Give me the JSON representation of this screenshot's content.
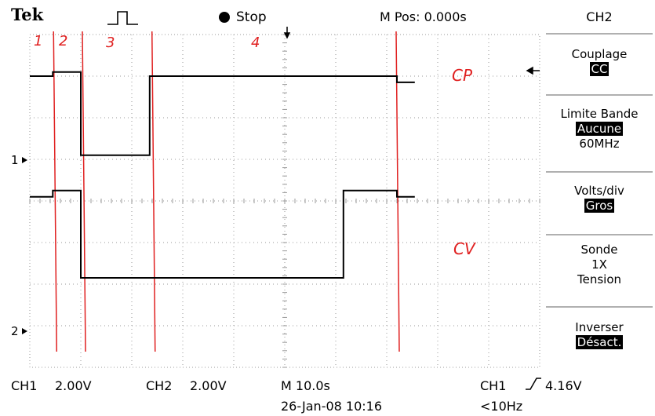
{
  "header": {
    "brand": "Tek",
    "status": "Stop",
    "horizontal_position": "M Pos: 0.000s"
  },
  "menu": {
    "title": "CH2",
    "items": [
      {
        "label": "Couplage",
        "values": [
          "CC"
        ],
        "highlighted": [
          true
        ]
      },
      {
        "label": "Limite Bande",
        "values": [
          "Aucune",
          "60MHz"
        ],
        "highlighted": [
          true,
          false
        ]
      },
      {
        "label": "Volts/div",
        "values": [
          "Gros"
        ],
        "highlighted": [
          true
        ]
      },
      {
        "label": "Sonde",
        "values": [
          "1X",
          "Tension"
        ],
        "highlighted": [
          false,
          false
        ]
      },
      {
        "label": "Inverser",
        "values": [
          "Désact."
        ],
        "highlighted": [
          true
        ]
      }
    ]
  },
  "footer": {
    "ch1_label": "CH1",
    "ch1_scale": "2.00V",
    "ch2_label": "CH2",
    "ch2_scale": "2.00V",
    "timebase": "M 10.0s",
    "date_time": "26-Jan-08 10:16",
    "trigger_source": "CH1",
    "trigger_level": "4.16V",
    "frequency": "<10Hz"
  },
  "markers": {
    "ch1": "1",
    "ch2": "2"
  },
  "annotations": {
    "phases": [
      "1",
      "2",
      "3",
      "4"
    ],
    "cp": "CP",
    "cv": "CV"
  },
  "colors": {
    "trace": "#000000",
    "annotation": "#e02020",
    "grid": "#9a9a9a"
  },
  "chart_data": {
    "type": "line",
    "x_unit": "div",
    "y_unit": "div",
    "xlim": [
      0,
      10
    ],
    "ylim": [
      -4,
      4
    ],
    "series": [
      {
        "name": "CP",
        "points": [
          [
            0,
            3.0
          ],
          [
            0.45,
            3.0
          ],
          [
            0.45,
            3.1
          ],
          [
            1.0,
            3.1
          ],
          [
            1.0,
            1.1
          ],
          [
            2.35,
            1.1
          ],
          [
            2.35,
            3.0
          ],
          [
            7.2,
            3.0
          ],
          [
            7.2,
            2.85
          ],
          [
            7.55,
            2.85
          ]
        ]
      },
      {
        "name": "CV",
        "points": [
          [
            0,
            0.1
          ],
          [
            0.45,
            0.1
          ],
          [
            0.45,
            0.25
          ],
          [
            1.0,
            0.25
          ],
          [
            1.0,
            -1.85
          ],
          [
            6.15,
            -1.85
          ],
          [
            6.15,
            0.25
          ],
          [
            7.2,
            0.25
          ],
          [
            7.2,
            0.1
          ],
          [
            7.55,
            0.1
          ]
        ]
      }
    ],
    "phase_lines_x": [
      0.45,
      1.0,
      2.35,
      7.2
    ]
  }
}
